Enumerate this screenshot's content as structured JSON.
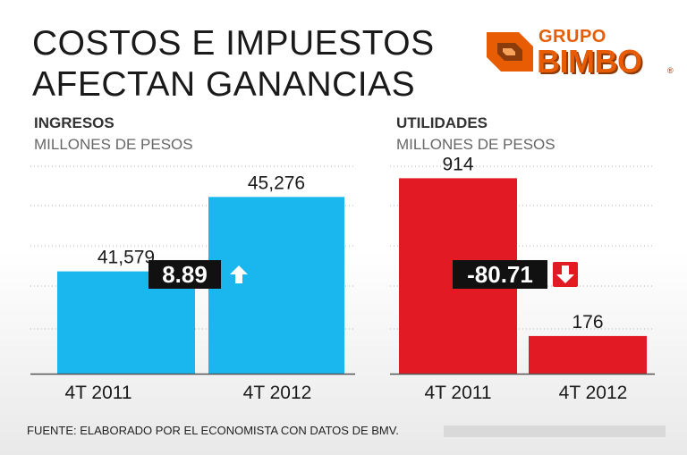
{
  "title": {
    "line1": "COSTOS E IMPUESTOS",
    "line2": "AFECTAN GANANCIAS"
  },
  "logo": {
    "top": "GRUPO",
    "main": "BIMBO",
    "reg": "®"
  },
  "colors": {
    "ingresos": "#1ab6ee",
    "utilidades": "#e21a23",
    "box": "#111111",
    "gridline": "#b5b5b5",
    "axis": "#555555"
  },
  "chart_data": [
    {
      "type": "bar",
      "title": "INGRESOS",
      "subtitle": "MILLONES DE PESOS",
      "categories": [
        "4T 2011",
        "4T 2012"
      ],
      "values": [
        41579,
        45276
      ],
      "value_labels": [
        "41,579",
        "45,276"
      ],
      "change": "8.89",
      "change_direction": "up",
      "ylim": [
        36500,
        46800
      ],
      "grid": true
    },
    {
      "type": "bar",
      "title": "UTILIDADES",
      "subtitle": "MILLONES DE PESOS",
      "categories": [
        "4T 2011",
        "4T 2012"
      ],
      "values": [
        914,
        176
      ],
      "value_labels": [
        "914",
        "176"
      ],
      "change": "-80.71",
      "change_direction": "down",
      "ylim": [
        0,
        970
      ],
      "grid": true
    }
  ],
  "source": "FUENTE: ELABORADO POR EL ECONOMISTA CON DATOS DE BMV."
}
